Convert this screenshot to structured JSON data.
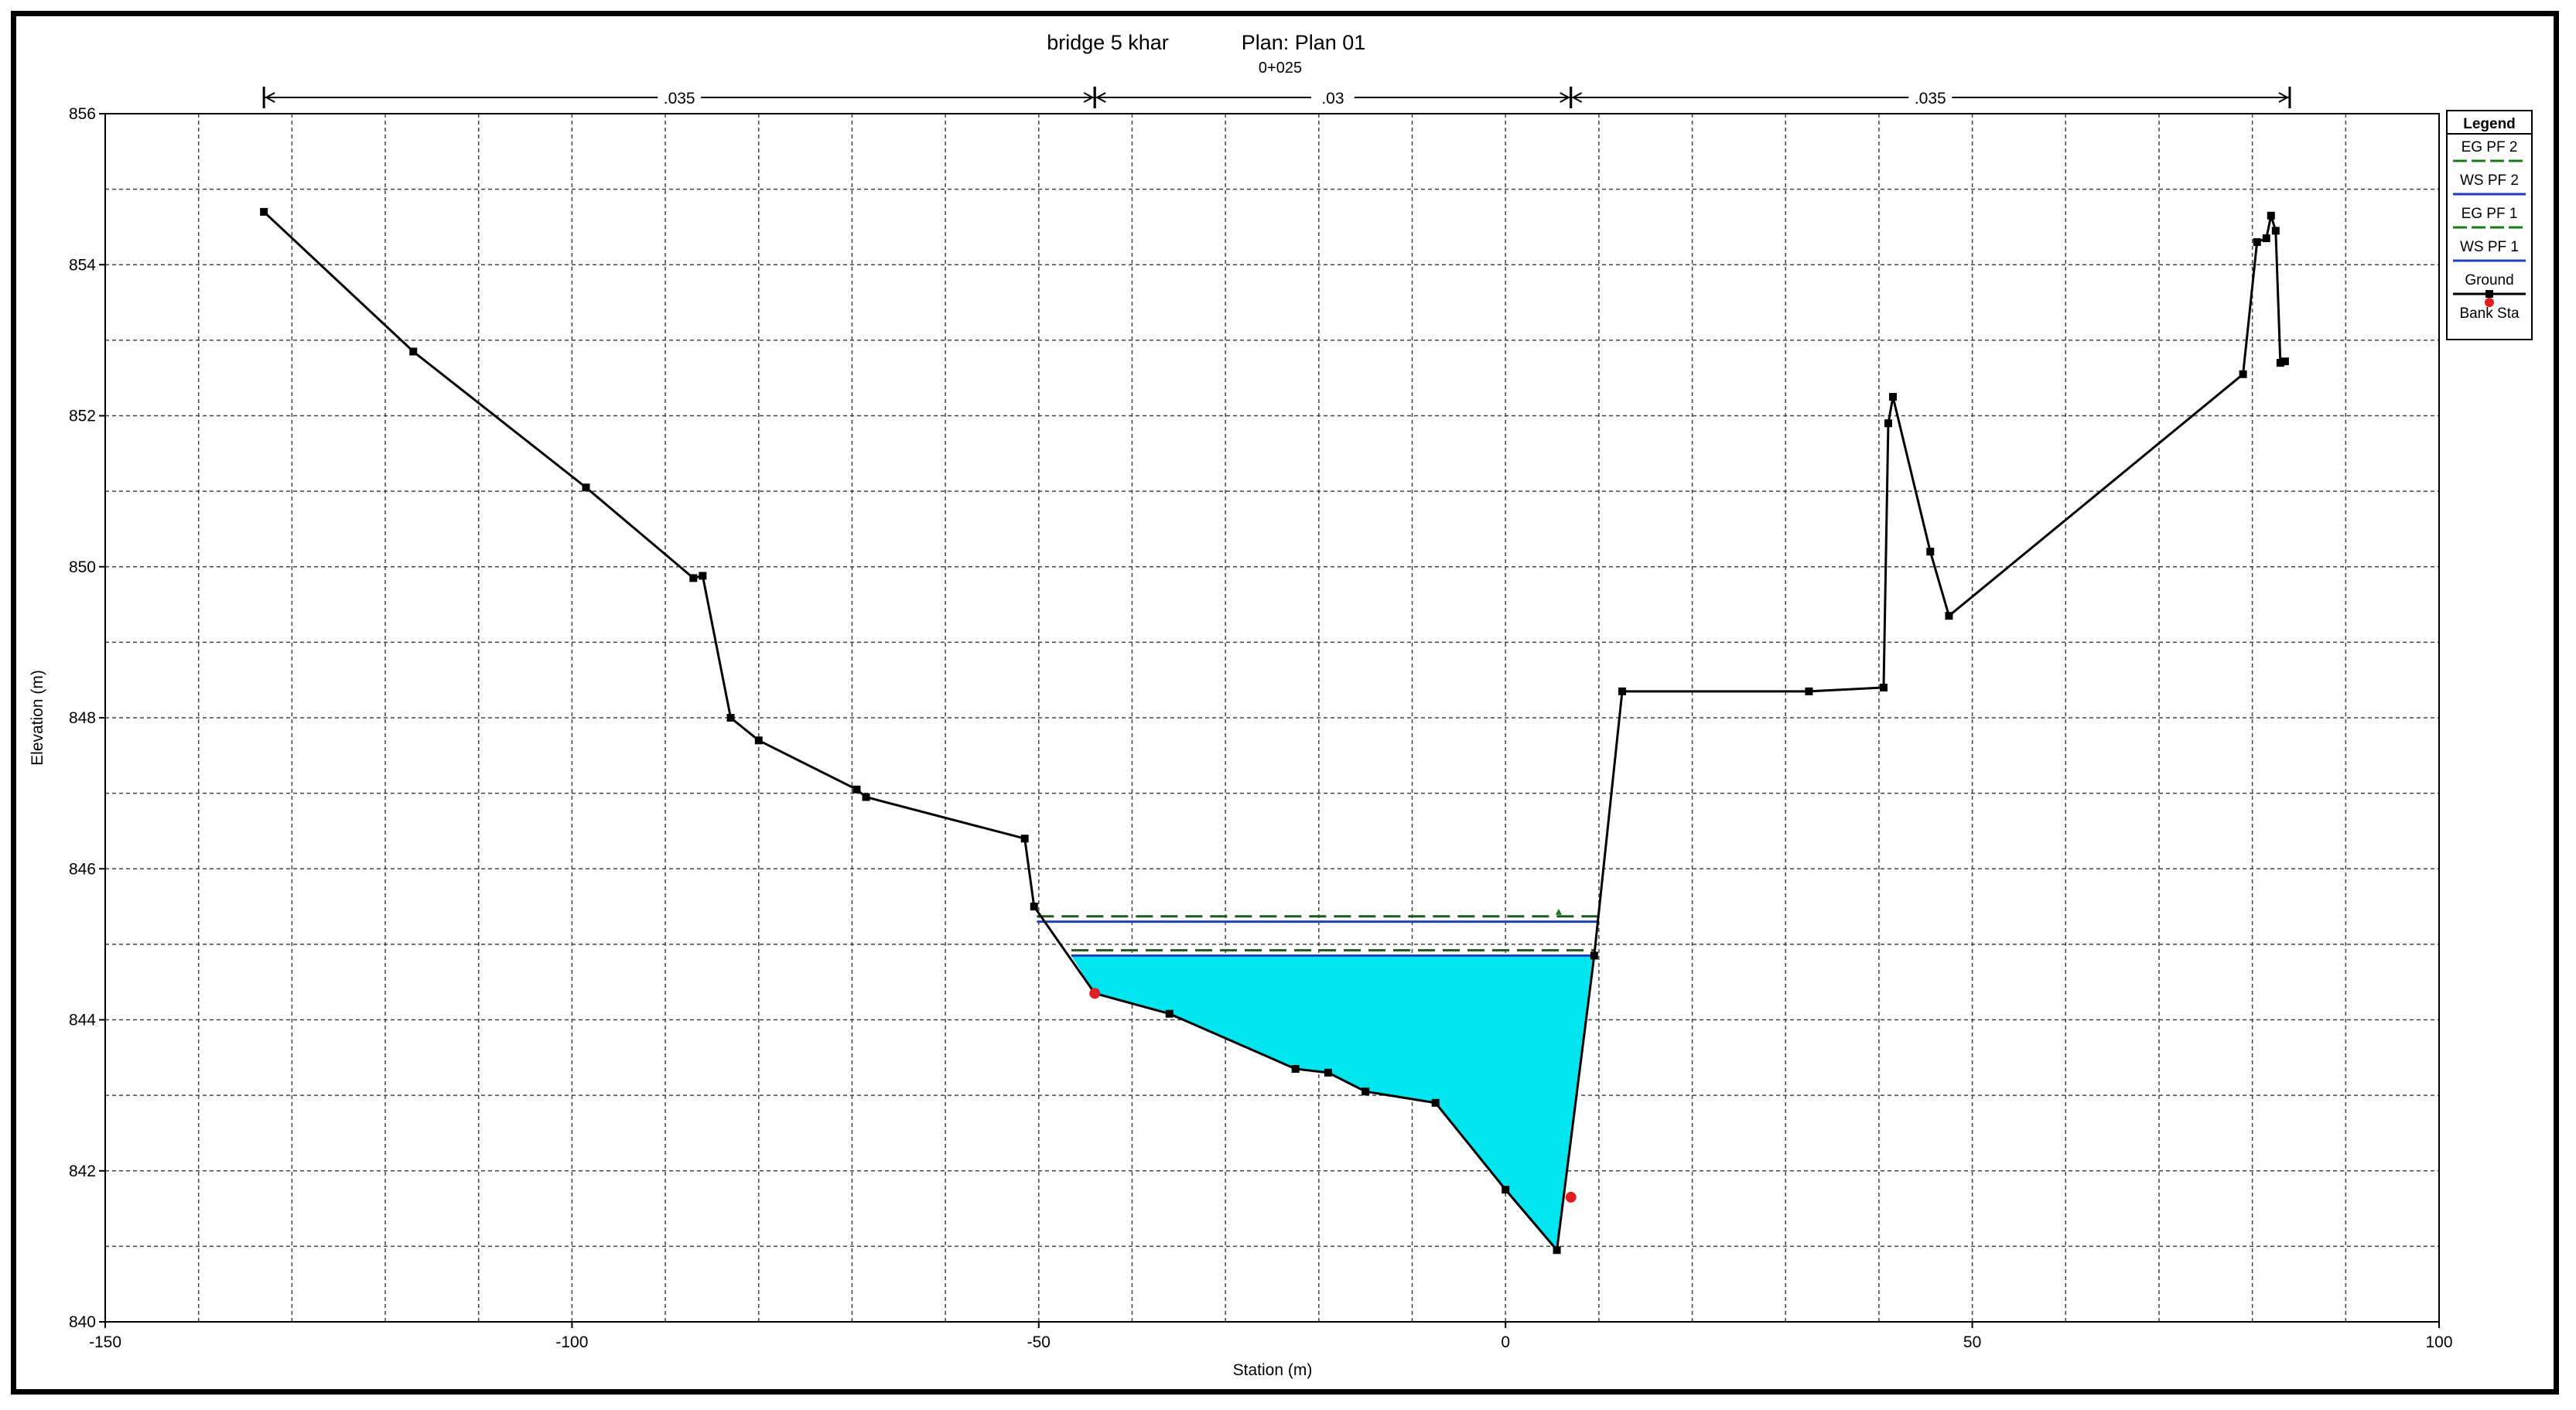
{
  "chart_data": {
    "type": "line",
    "title": "bridge 5 khar",
    "plan": "Plan: Plan 01",
    "subtitle": "0+025",
    "xlabel": "Station (m)",
    "ylabel": "Elevation (m)",
    "xlim": [
      -150,
      100
    ],
    "ylim": [
      840,
      856
    ],
    "x_ticks": [
      -150,
      -100,
      -50,
      0,
      50,
      100
    ],
    "y_ticks": [
      840,
      842,
      844,
      846,
      848,
      850,
      852,
      854,
      856
    ],
    "grid": true,
    "legend_position": "right",
    "legend_title": "Legend",
    "legend": [
      {
        "name": "EG PF 2",
        "color": "#1a7a1a",
        "style": "dashed"
      },
      {
        "name": "WS PF 2",
        "color": "#1f3fbf",
        "style": "solid"
      },
      {
        "name": "EG PF 1",
        "color": "#1a7a1a",
        "style": "dashed"
      },
      {
        "name": "WS PF 1",
        "color": "#1f3fbf",
        "style": "solid"
      },
      {
        "name": "Ground",
        "color": "#000000",
        "style": "solid"
      },
      {
        "name": "Bank Sta",
        "color": "#e02020",
        "style": "marker"
      }
    ],
    "manning_n": [
      {
        "label": ".035",
        "x_start": -133,
        "x_end": -44
      },
      {
        "label": ".03",
        "x_start": -44,
        "x_end": 7
      },
      {
        "label": ".035",
        "x_start": 7,
        "x_end": 84
      }
    ],
    "ground": {
      "x": [
        -133,
        -117,
        -98.5,
        -87,
        -86,
        -83,
        -80,
        -69.5,
        -68.5,
        -51.5,
        -50.5,
        -44,
        -36,
        -22.5,
        -19,
        -15,
        -7.5,
        0,
        5.5,
        9.5,
        12.5,
        32.5,
        40.5,
        41,
        41.5,
        45.5,
        47.5,
        79,
        80.5,
        81.5,
        82,
        82.5,
        83,
        83.5
      ],
      "y": [
        854.7,
        852.85,
        851.05,
        849.85,
        849.88,
        848,
        847.7,
        847.05,
        846.95,
        846.4,
        845.5,
        844.35,
        844.08,
        843.35,
        843.3,
        843.05,
        842.9,
        841.75,
        840.95,
        844.85,
        848.35,
        848.35,
        848.4,
        851.9,
        852.25,
        850.2,
        849.35,
        852.55,
        854.3,
        854.35,
        854.65,
        854.45,
        852.7,
        852.72
      ]
    },
    "bank_stations": [
      {
        "x": -44,
        "y": 844.35
      },
      {
        "x": 7,
        "y": 841.65
      }
    ],
    "water_surfaces": [
      {
        "name": "WS PF 2",
        "elevation": 845.3,
        "x_start": -50.2,
        "x_end": 10
      },
      {
        "name": "EG PF 2",
        "elevation": 845.37,
        "x_start": -50.2,
        "x_end": 10
      },
      {
        "name": "WS PF 1",
        "elevation": 844.85,
        "x_start": -46.5,
        "x_end": 9.6
      },
      {
        "name": "EG PF 1",
        "elevation": 844.92,
        "x_start": -46.5,
        "x_end": 9.6
      }
    ],
    "water_fill_color": "#00e5ee"
  }
}
